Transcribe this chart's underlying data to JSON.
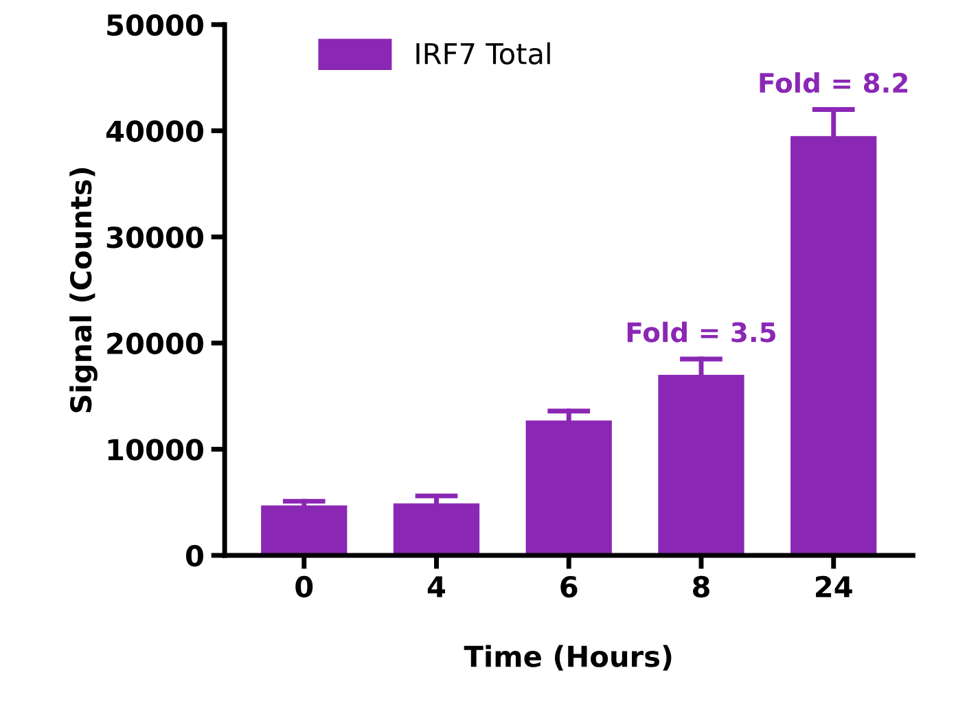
{
  "chart_data": {
    "type": "bar",
    "xlabel": "Time (Hours)",
    "ylabel": "Signal (Counts)",
    "categories": [
      "0",
      "4",
      "6",
      "8",
      "24"
    ],
    "series": [
      {
        "name": "IRF7 Total",
        "color": "#8a27b4",
        "values": [
          4700,
          4900,
          12700,
          17000,
          39500
        ],
        "errors": [
          [
            4700,
            5100
          ],
          [
            4900,
            5600
          ],
          [
            12700,
            13600
          ],
          [
            17000,
            18500
          ],
          [
            39500,
            42000
          ]
        ]
      }
    ],
    "ylim": [
      0,
      50000
    ],
    "yticks": [
      0,
      10000,
      20000,
      30000,
      40000,
      50000
    ],
    "annotations": [
      {
        "text": "Fold = 3.5",
        "x": "8",
        "y": 18500
      },
      {
        "text": "Fold = 8.2",
        "x": "24",
        "y": 42000
      }
    ],
    "legend": "top left",
    "grid": false
  }
}
